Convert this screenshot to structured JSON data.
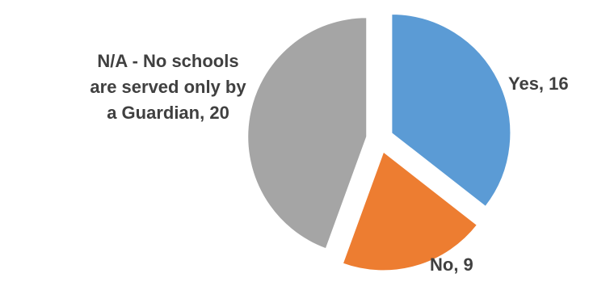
{
  "chart_data": {
    "type": "pie",
    "title": "",
    "slices": [
      {
        "label": "Yes",
        "value": 16,
        "color": "#5b9bd5",
        "data_label": "Yes, 16"
      },
      {
        "label": "No",
        "value": 9,
        "color": "#ed7d31",
        "data_label": "No, 9"
      },
      {
        "label": "N/A - No schools are served only by a Guardian",
        "value": 20,
        "color": "#a5a5a5",
        "data_label_lines": [
          "N/A - No schools",
          "are served only by",
          "a Guardian, 20"
        ]
      }
    ],
    "exploded": true,
    "legend": "none"
  }
}
